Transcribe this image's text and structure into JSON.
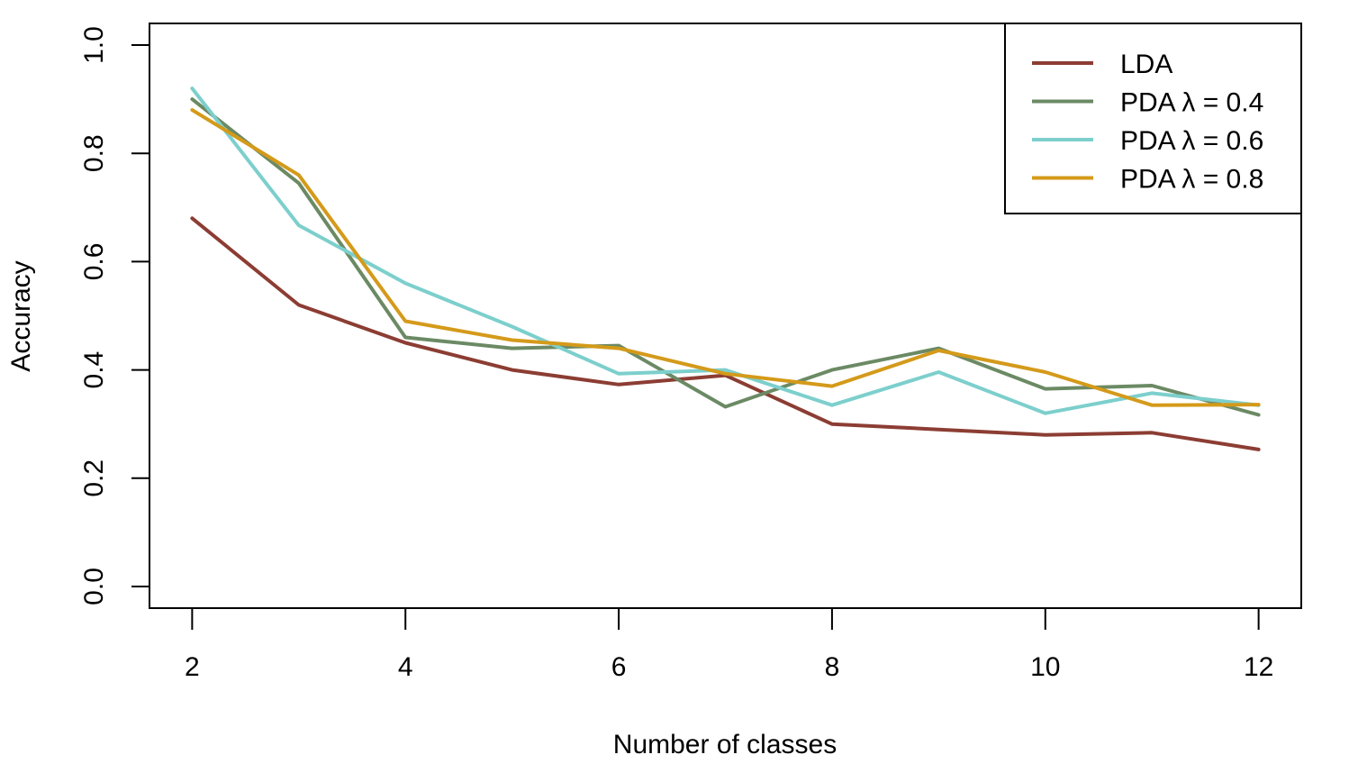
{
  "chart_data": {
    "type": "line",
    "title": "",
    "xlabel": "Number of classes",
    "ylabel": "Accuracy",
    "xlim": [
      1.6,
      12.4
    ],
    "ylim": [
      -0.04,
      1.04
    ],
    "x_ticks": [
      "2",
      "4",
      "6",
      "8",
      "10",
      "12"
    ],
    "x_tick_values": [
      2,
      4,
      6,
      8,
      10,
      12
    ],
    "y_ticks": [
      "0.0",
      "0.2",
      "0.4",
      "0.6",
      "0.8",
      "1.0"
    ],
    "y_tick_values": [
      0.0,
      0.2,
      0.4,
      0.6,
      0.8,
      1.0
    ],
    "grid": false,
    "legend_position": "top-right",
    "x": [
      2,
      3,
      4,
      5,
      6,
      7,
      8,
      9,
      10,
      11,
      12
    ],
    "series": [
      {
        "name": "LDA",
        "color": "#8c3d33",
        "values": [
          0.68,
          0.52,
          0.45,
          0.4,
          0.373,
          0.39,
          0.3,
          0.29,
          0.28,
          0.284,
          0.253
        ]
      },
      {
        "name": "PDA λ = 0.4",
        "color": "#6b8a64",
        "values": [
          0.9,
          0.745,
          0.46,
          0.44,
          0.445,
          0.332,
          0.4,
          0.44,
          0.365,
          0.371,
          0.317
        ]
      },
      {
        "name": "PDA λ = 0.6",
        "color": "#7ccfcc",
        "values": [
          0.92,
          0.667,
          0.56,
          0.48,
          0.393,
          0.4,
          0.335,
          0.396,
          0.32,
          0.357,
          0.335
        ]
      },
      {
        "name": "PDA λ = 0.8",
        "color": "#d49a1a",
        "values": [
          0.88,
          0.76,
          0.49,
          0.455,
          0.44,
          0.393,
          0.37,
          0.436,
          0.396,
          0.335,
          0.336
        ]
      }
    ]
  }
}
